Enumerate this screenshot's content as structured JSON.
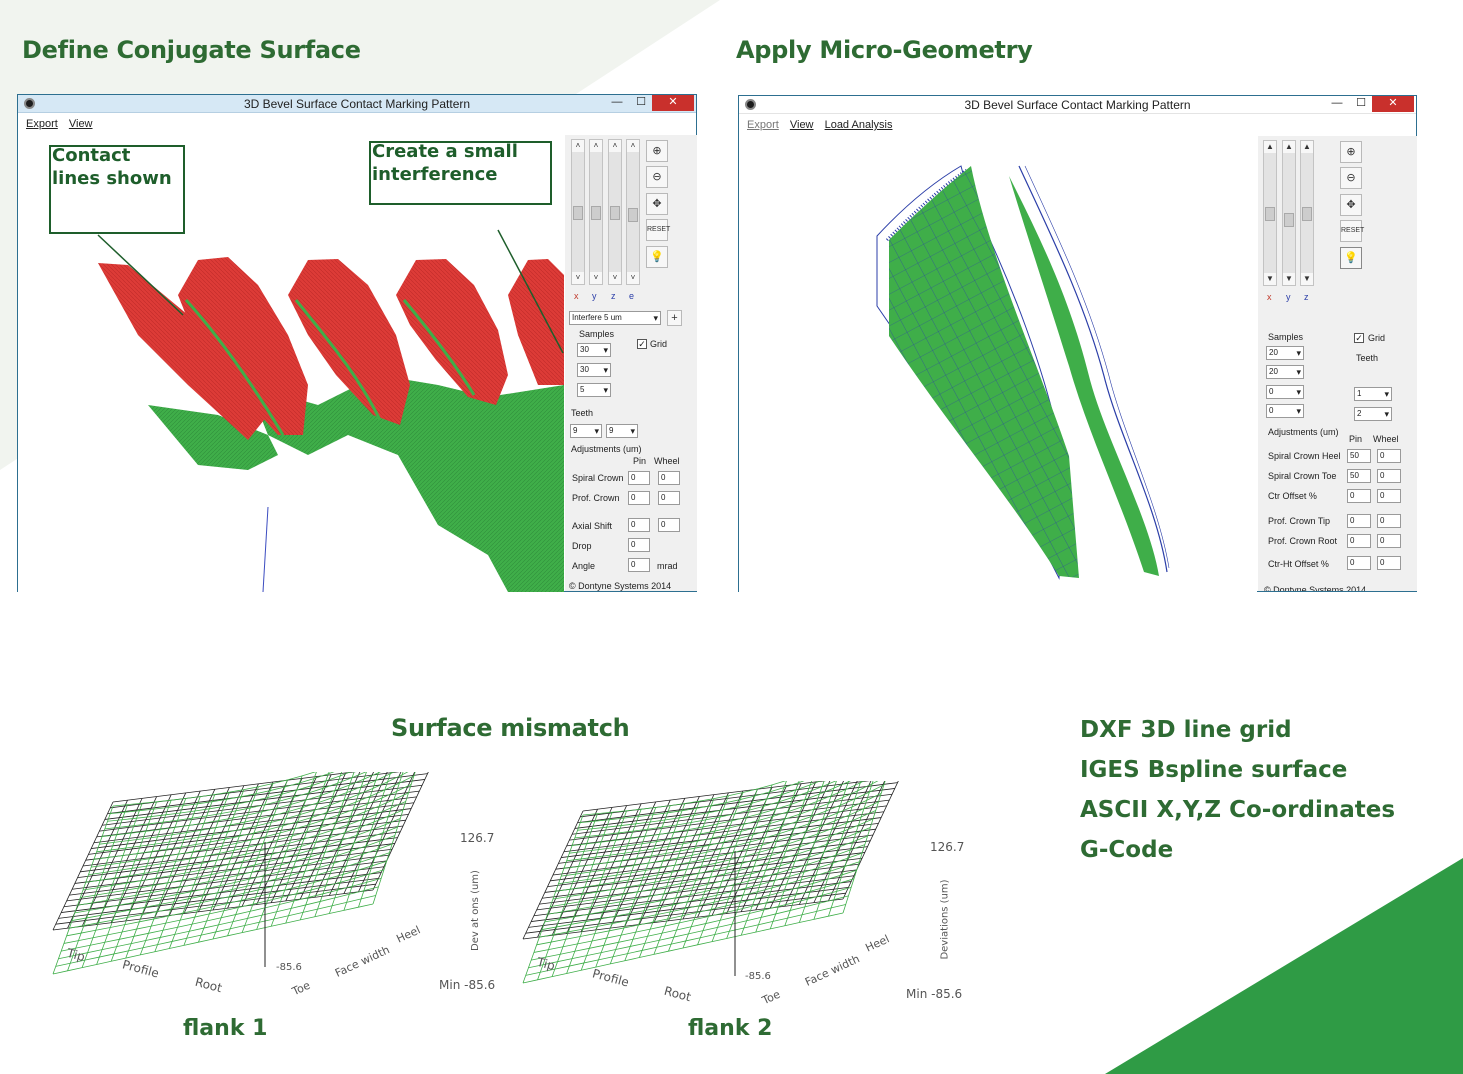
{
  "headings": {
    "left": "Define Conjugate Surface",
    "right": "Apply Micro-Geometry",
    "mismatch": "Surface mismatch"
  },
  "colors": {
    "heading_green": "#2e6b33",
    "gear_red": "#dd3b37",
    "gear_green": "#3fae49",
    "mesh_blue": "#2b3ea8",
    "accent_green": "#2f9b45"
  },
  "window_left": {
    "title": "3D Bevel Surface Contact Marking Pattern",
    "menu": [
      "Export",
      "View"
    ],
    "tools": [
      "zoom-in-icon",
      "zoom-out-icon",
      "pan-icon",
      "reset-icon",
      "light-bulb-icon"
    ],
    "axes": [
      "x",
      "y",
      "z",
      "e"
    ],
    "interference_select": "Interfere 5 um",
    "plus_button": "+",
    "samples_label": "Samples",
    "samples": [
      "30",
      "30",
      "5"
    ],
    "grid_label": "Grid",
    "teeth_label": "Teeth",
    "teeth": [
      "9",
      "9"
    ],
    "adjustments_label": "Adjustments  (um)",
    "pin_label": "Pin",
    "wheel_label": "Wheel",
    "rows": [
      {
        "label": "Spiral Crown",
        "pin": "0",
        "wheel": "0"
      },
      {
        "label": "Prof. Crown",
        "pin": "0",
        "wheel": "0"
      },
      {
        "label": "Axial Shift",
        "pin": "0",
        "wheel": "0"
      }
    ],
    "drop_label": "Drop",
    "drop_value": "0",
    "angle_label": "Angle",
    "angle_value": "0",
    "angle_unit": "mrad",
    "copyright": "© Dontyne Systems 2014"
  },
  "annotations": {
    "contact_lines": [
      "Contact",
      "lines shown"
    ],
    "interference": [
      "Create a small",
      "interference"
    ]
  },
  "window_right": {
    "title": "3D Bevel Surface Contact Marking Pattern",
    "menu": [
      "Export",
      "View",
      "Load Analysis"
    ],
    "tools": [
      "zoom-in-icon",
      "zoom-out-icon",
      "pan-icon",
      "reset-icon",
      "light-bulb-icon"
    ],
    "axes": [
      "x",
      "y",
      "z"
    ],
    "samples_label": "Samples",
    "samples": [
      "20",
      "20",
      "0",
      "0"
    ],
    "grid_label": "Grid",
    "teeth_label": "Teeth",
    "teeth": [
      "1",
      "2"
    ],
    "adjustments_label": "Adjustments (um)",
    "pin_label": "Pin",
    "wheel_label": "Wheel",
    "rows": [
      {
        "label": "Spiral Crown Heel",
        "pin": "50",
        "wheel": "0"
      },
      {
        "label": "Spiral Crown Toe",
        "pin": "50",
        "wheel": "0"
      },
      {
        "label": "Ctr Offset %",
        "pin": "0",
        "wheel": "0"
      },
      {
        "label": "Prof. Crown Tip",
        "pin": "0",
        "wheel": "0"
      },
      {
        "label": "Prof. Crown Root",
        "pin": "0",
        "wheel": "0"
      },
      {
        "label": "Ctr-Ht Offset %",
        "pin": "0",
        "wheel": "0"
      }
    ],
    "copyright": "© Dontyne Systems 2014"
  },
  "plots": [
    {
      "caption": "flank 1",
      "max_label": "126.7",
      "min_label": "Min -85.6",
      "zero_label": "-85.6",
      "axis_labels": {
        "tip": "Tip",
        "profile": "Profile",
        "root": "Root",
        "toe": "Toe",
        "face_width": "Face width",
        "heel": "Heel",
        "deviations": "Dev at ons (um)"
      }
    },
    {
      "caption": "flank 2",
      "max_label": "126.7",
      "min_label": "Min -85.6",
      "zero_label": "-85.6",
      "axis_labels": {
        "tip": "Tip",
        "profile": "Profile",
        "root": "Root",
        "toe": "Toe",
        "face_width": "Face width",
        "heel": "Heel",
        "deviations": "Deviations (um)"
      }
    }
  ],
  "exports": [
    "DXF  3D line grid",
    "IGES Bspline surface",
    "ASCII X,Y,Z Co-ordinates",
    "G-Code"
  ]
}
